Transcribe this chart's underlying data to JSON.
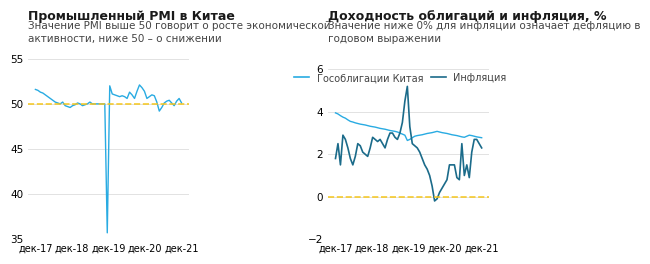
{
  "left_title": "Промышленный PMI в Китае",
  "left_subtitle": "Значение PMI выше 50 говорит о росте экономической\nактивности, ниже 50 – о снижении",
  "right_title": "Доходность облигаций и инфляция, %",
  "right_subtitle": "Значение ниже 0% для инфляции означает дефляцию в\nгодовом выражении",
  "left_ylim": [
    35,
    55
  ],
  "left_yticks": [
    35,
    40,
    45,
    50,
    55
  ],
  "right_ylim": [
    -2.0,
    6.5
  ],
  "right_yticks": [
    -2.0,
    0.0,
    2.0,
    4.0,
    6.0
  ],
  "x_labels": [
    "дек-17",
    "дек-18",
    "дек-19",
    "дек-20",
    "дек-21"
  ],
  "pmi_color": "#29ABE2",
  "bond_color": "#29ABE2",
  "inflation_color": "#1B6B8A",
  "dashed_color": "#F5C518",
  "background_color": "#FFFFFF",
  "title_fontsize": 9,
  "subtitle_fontsize": 7.5,
  "legend_label_bond": "Гособлигации Китая",
  "legend_label_inflation": "Инфляция",
  "pmi_data": [
    51.6,
    51.5,
    51.3,
    51.2,
    51.0,
    50.8,
    50.6,
    50.4,
    50.2,
    50.1,
    50.0,
    50.2,
    49.8,
    49.7,
    49.6,
    49.8,
    49.9,
    50.1,
    50.0,
    49.8,
    49.9,
    50.0,
    50.2,
    50.0,
    50.0,
    50.0,
    50.0,
    50.0,
    50.0,
    35.7,
    52.0,
    51.1,
    51.0,
    50.9,
    50.8,
    50.9,
    50.8,
    50.6,
    51.3,
    51.0,
    50.6,
    51.4,
    52.1,
    51.8,
    51.4,
    50.6,
    50.8,
    51.0,
    50.9,
    50.2,
    49.2,
    49.6,
    50.1,
    50.3,
    50.4,
    50.1,
    49.8,
    50.3,
    50.6,
    50.1
  ],
  "bond_data": [
    3.95,
    3.9,
    3.82,
    3.75,
    3.7,
    3.62,
    3.55,
    3.52,
    3.48,
    3.45,
    3.42,
    3.4,
    3.38,
    3.35,
    3.32,
    3.3,
    3.28,
    3.25,
    3.22,
    3.2,
    3.18,
    3.15,
    3.12,
    3.1,
    3.08,
    3.05,
    3.0,
    2.95,
    2.9,
    2.65,
    2.7,
    2.78,
    2.85,
    2.88,
    2.9,
    2.92,
    2.95,
    2.98,
    3.0,
    3.02,
    3.05,
    3.08,
    3.05,
    3.02,
    3.0,
    2.98,
    2.95,
    2.92,
    2.9,
    2.88,
    2.85,
    2.82,
    2.8,
    2.85,
    2.9,
    2.88,
    2.85,
    2.82,
    2.8,
    2.78
  ],
  "inflation_data": [
    1.8,
    2.5,
    1.5,
    2.9,
    2.7,
    2.3,
    1.8,
    1.5,
    1.9,
    2.5,
    2.4,
    2.1,
    2.0,
    1.9,
    2.3,
    2.8,
    2.7,
    2.6,
    2.7,
    2.5,
    2.3,
    2.7,
    3.0,
    3.0,
    2.8,
    2.7,
    3.0,
    3.5,
    4.5,
    5.2,
    3.3,
    2.5,
    2.4,
    2.3,
    2.1,
    1.8,
    1.5,
    1.3,
    1.0,
    0.5,
    -0.2,
    -0.1,
    0.2,
    0.4,
    0.6,
    0.8,
    1.5,
    1.5,
    1.5,
    0.9,
    0.8,
    2.5,
    1.0,
    1.5,
    0.9,
    2.1,
    2.7,
    2.7,
    2.5,
    2.3
  ]
}
